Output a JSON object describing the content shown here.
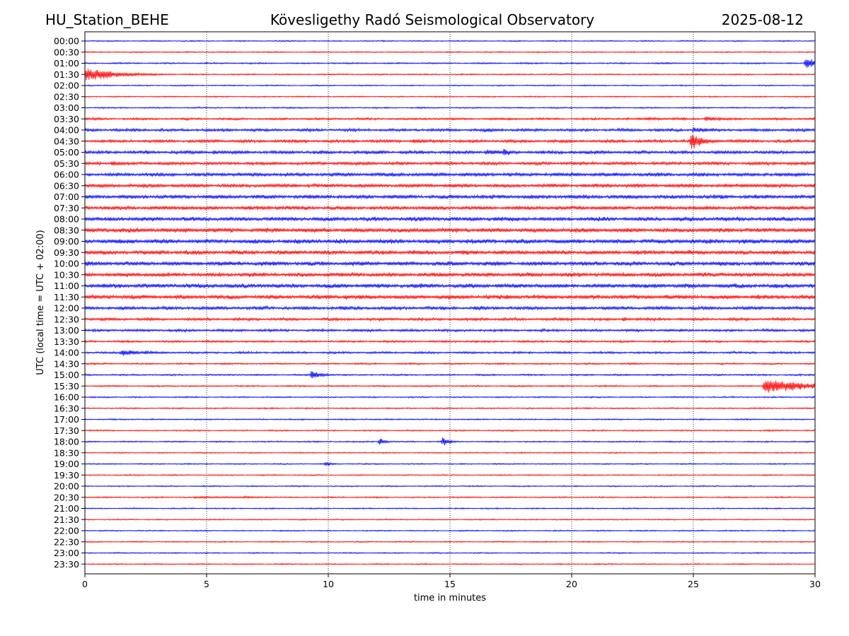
{
  "header": {
    "station": "HU_Station_BEHE",
    "observatory": "Kövesligethy Radó Seismological Observatory",
    "date": "2025-08-12"
  },
  "chart_data": {
    "type": "line",
    "subtype": "helicorder",
    "xlabel": "time in minutes",
    "ylabel": "UTC (local time = UTC + 02:00)",
    "xlim": [
      0,
      30
    ],
    "xticks": [
      0,
      5,
      10,
      15,
      20,
      25,
      30
    ],
    "grid": "vertical dotted at each x tick",
    "colors": [
      "#0000ff",
      "#ff0000"
    ],
    "rows": [
      {
        "label": "00:00",
        "color": "#0000ff",
        "noise": 0.9,
        "events": []
      },
      {
        "label": "00:30",
        "color": "#ff0000",
        "noise": 0.9,
        "events": []
      },
      {
        "label": "01:00",
        "color": "#0000ff",
        "noise": 1.1,
        "events": [
          {
            "t": 29.6,
            "amp": 9,
            "dur": 0.8
          }
        ]
      },
      {
        "label": "01:30",
        "color": "#ff0000",
        "noise": 1.0,
        "events": [
          {
            "t": 0.0,
            "amp": 11,
            "dur": 1.5
          }
        ]
      },
      {
        "label": "02:00",
        "color": "#0000ff",
        "noise": 0.9,
        "events": []
      },
      {
        "label": "02:30",
        "color": "#ff0000",
        "noise": 0.9,
        "events": []
      },
      {
        "label": "03:00",
        "color": "#0000ff",
        "noise": 1.0,
        "events": []
      },
      {
        "label": "03:30",
        "color": "#ff0000",
        "noise": 1.6,
        "events": [
          {
            "t": 23.0,
            "amp": 3,
            "dur": 1.5
          },
          {
            "t": 25.5,
            "amp": 4,
            "dur": 1.2
          }
        ]
      },
      {
        "label": "04:00",
        "color": "#0000ff",
        "noise": 2.0,
        "events": [
          {
            "t": 16.5,
            "amp": 4,
            "dur": 0.6
          },
          {
            "t": 25.0,
            "amp": 5,
            "dur": 0.8
          }
        ]
      },
      {
        "label": "04:30",
        "color": "#ff0000",
        "noise": 2.2,
        "events": [
          {
            "t": 13.5,
            "amp": 4,
            "dur": 0.8
          },
          {
            "t": 24.9,
            "amp": 14,
            "dur": 0.6
          }
        ]
      },
      {
        "label": "05:00",
        "color": "#0000ff",
        "noise": 2.3,
        "events": [
          {
            "t": 5.3,
            "amp": 4,
            "dur": 0.5
          },
          {
            "t": 12.0,
            "amp": 4,
            "dur": 0.5
          },
          {
            "t": 16.5,
            "amp": 5,
            "dur": 1.2
          },
          {
            "t": 17.2,
            "amp": 8,
            "dur": 0.3
          }
        ]
      },
      {
        "label": "05:30",
        "color": "#ff0000",
        "noise": 2.3,
        "events": [
          {
            "t": 1.1,
            "amp": 5,
            "dur": 0.4
          },
          {
            "t": 11.5,
            "amp": 3,
            "dur": 0.6
          }
        ]
      },
      {
        "label": "06:00",
        "color": "#0000ff",
        "noise": 2.6,
        "events": []
      },
      {
        "label": "06:30",
        "color": "#ff0000",
        "noise": 2.6,
        "events": [
          {
            "t": 27.0,
            "amp": 3,
            "dur": 2.0
          }
        ]
      },
      {
        "label": "07:00",
        "color": "#0000ff",
        "noise": 2.7,
        "events": [
          {
            "t": 5.0,
            "amp": 3,
            "dur": 0.5
          }
        ]
      },
      {
        "label": "07:30",
        "color": "#ff0000",
        "noise": 2.7,
        "events": [
          {
            "t": 4.0,
            "amp": 4,
            "dur": 0.6
          },
          {
            "t": 7.3,
            "amp": 3,
            "dur": 0.8
          }
        ]
      },
      {
        "label": "08:00",
        "color": "#0000ff",
        "noise": 2.9,
        "events": []
      },
      {
        "label": "08:30",
        "color": "#ff0000",
        "noise": 3.1,
        "events": [
          {
            "t": 14.0,
            "amp": 4,
            "dur": 0.6
          }
        ]
      },
      {
        "label": "09:00",
        "color": "#0000ff",
        "noise": 3.1,
        "events": [
          {
            "t": 24.0,
            "amp": 3,
            "dur": 2.0
          }
        ]
      },
      {
        "label": "09:30",
        "color": "#ff0000",
        "noise": 3.0,
        "events": [
          {
            "t": 4.5,
            "amp": 3,
            "dur": 0.8
          },
          {
            "t": 13.5,
            "amp": 3,
            "dur": 1.0
          }
        ]
      },
      {
        "label": "10:00",
        "color": "#0000ff",
        "noise": 3.0,
        "events": [
          {
            "t": 24.5,
            "amp": 3,
            "dur": 1.0
          }
        ]
      },
      {
        "label": "10:30",
        "color": "#ff0000",
        "noise": 3.0,
        "events": [
          {
            "t": 21.5,
            "amp": 4,
            "dur": 0.5
          },
          {
            "t": 16.0,
            "amp": 3,
            "dur": 0.5
          }
        ]
      },
      {
        "label": "11:00",
        "color": "#0000ff",
        "noise": 3.0,
        "events": [
          {
            "t": 22.5,
            "amp": 4,
            "dur": 0.6
          },
          {
            "t": 26.5,
            "amp": 3,
            "dur": 1.0
          }
        ]
      },
      {
        "label": "11:30",
        "color": "#ff0000",
        "noise": 3.0,
        "events": [
          {
            "t": 10.7,
            "amp": 5,
            "dur": 0.5
          },
          {
            "t": 17.3,
            "amp": 5,
            "dur": 0.6
          }
        ]
      },
      {
        "label": "12:00",
        "color": "#0000ff",
        "noise": 2.4,
        "events": [
          {
            "t": 16.0,
            "amp": 4,
            "dur": 0.5
          }
        ]
      },
      {
        "label": "12:30",
        "color": "#ff0000",
        "noise": 2.0,
        "events": [
          {
            "t": 22.1,
            "amp": 5,
            "dur": 0.3
          }
        ]
      },
      {
        "label": "13:00",
        "color": "#0000ff",
        "noise": 1.8,
        "events": []
      },
      {
        "label": "13:30",
        "color": "#ff0000",
        "noise": 1.5,
        "events": []
      },
      {
        "label": "14:00",
        "color": "#0000ff",
        "noise": 1.5,
        "events": [
          {
            "t": 1.5,
            "amp": 6,
            "dur": 0.8
          },
          {
            "t": 2.5,
            "amp": 3,
            "dur": 1.0
          }
        ]
      },
      {
        "label": "14:30",
        "color": "#ff0000",
        "noise": 1.2,
        "events": []
      },
      {
        "label": "15:00",
        "color": "#0000ff",
        "noise": 1.2,
        "events": [
          {
            "t": 9.3,
            "amp": 7,
            "dur": 0.5
          }
        ]
      },
      {
        "label": "15:30",
        "color": "#ff0000",
        "noise": 1.1,
        "events": [
          {
            "t": 27.9,
            "amp": 13,
            "dur": 2.0
          }
        ]
      },
      {
        "label": "16:00",
        "color": "#0000ff",
        "noise": 1.0,
        "events": []
      },
      {
        "label": "16:30",
        "color": "#ff0000",
        "noise": 1.0,
        "events": []
      },
      {
        "label": "17:00",
        "color": "#0000ff",
        "noise": 1.0,
        "events": []
      },
      {
        "label": "17:30",
        "color": "#ff0000",
        "noise": 1.0,
        "events": [
          {
            "t": 28.0,
            "amp": 2,
            "dur": 0.8
          }
        ]
      },
      {
        "label": "18:00",
        "color": "#0000ff",
        "noise": 1.0,
        "events": [
          {
            "t": 12.1,
            "amp": 6,
            "dur": 0.3
          },
          {
            "t": 14.7,
            "amp": 7,
            "dur": 0.3
          }
        ]
      },
      {
        "label": "18:30",
        "color": "#ff0000",
        "noise": 0.9,
        "events": []
      },
      {
        "label": "19:00",
        "color": "#0000ff",
        "noise": 0.9,
        "events": [
          {
            "t": 9.9,
            "amp": 4,
            "dur": 0.3
          }
        ]
      },
      {
        "label": "19:30",
        "color": "#ff0000",
        "noise": 0.9,
        "events": []
      },
      {
        "label": "20:00",
        "color": "#0000ff",
        "noise": 0.9,
        "events": []
      },
      {
        "label": "20:30",
        "color": "#ff0000",
        "noise": 1.0,
        "events": [
          {
            "t": 4.5,
            "amp": 2,
            "dur": 2.5
          },
          {
            "t": 6.5,
            "amp": 2,
            "dur": 1.5
          }
        ]
      },
      {
        "label": "21:00",
        "color": "#0000ff",
        "noise": 0.9,
        "events": []
      },
      {
        "label": "21:30",
        "color": "#ff0000",
        "noise": 0.9,
        "events": []
      },
      {
        "label": "22:00",
        "color": "#0000ff",
        "noise": 0.9,
        "events": []
      },
      {
        "label": "22:30",
        "color": "#ff0000",
        "noise": 0.9,
        "events": []
      },
      {
        "label": "23:00",
        "color": "#0000ff",
        "noise": 0.9,
        "events": []
      },
      {
        "label": "23:30",
        "color": "#ff0000",
        "noise": 0.9,
        "events": []
      }
    ]
  }
}
